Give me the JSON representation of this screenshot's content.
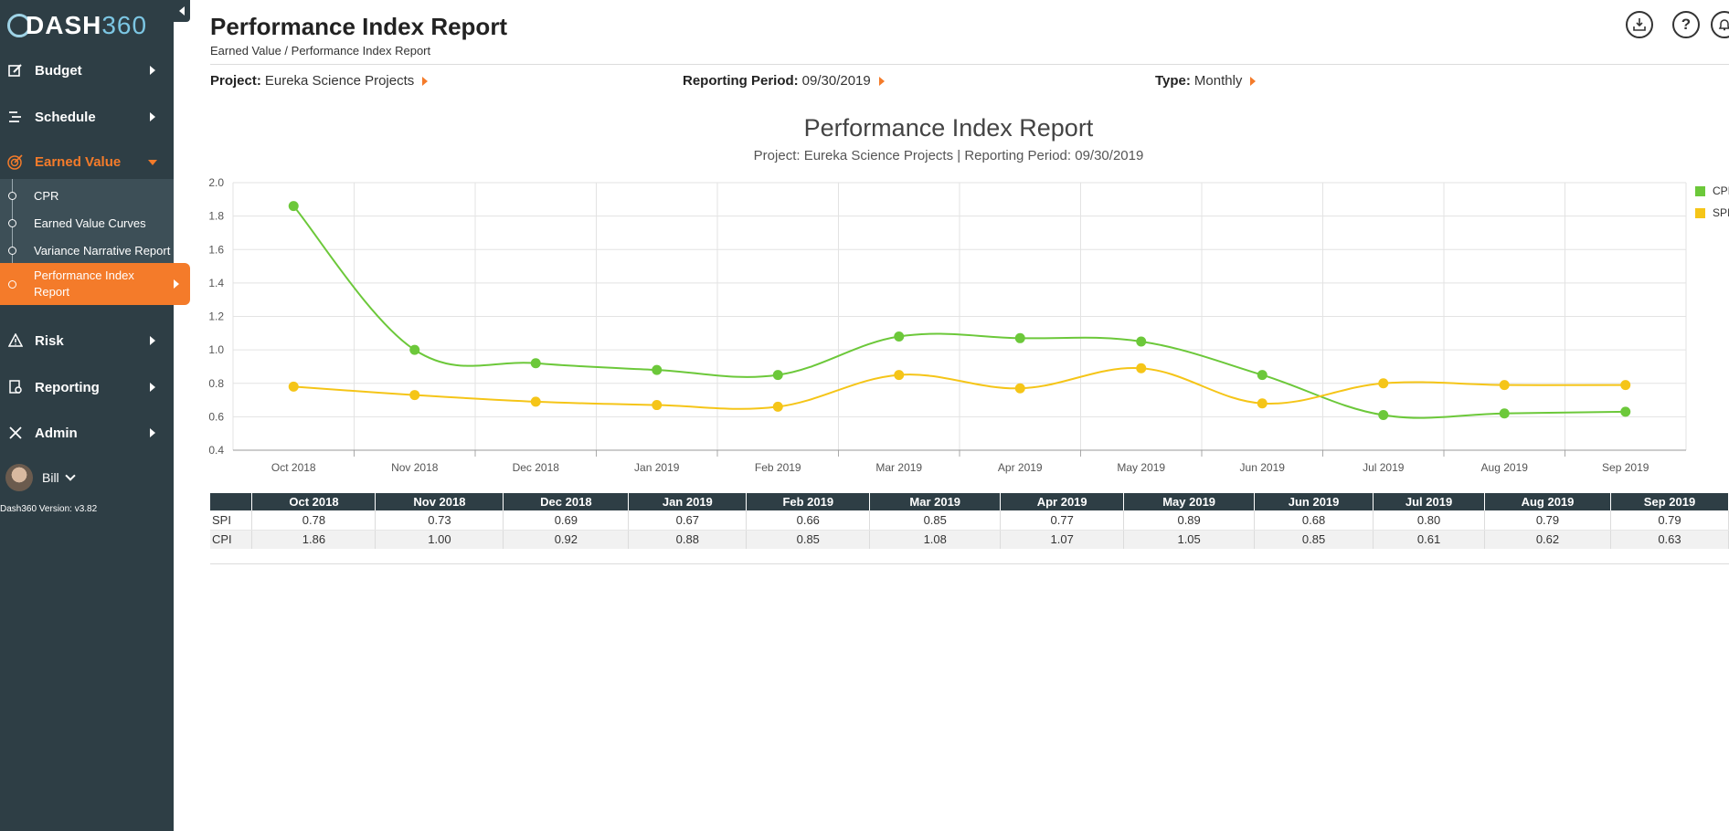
{
  "app": {
    "logo_text": "DASH",
    "logo_num": "360",
    "version": "Dash360 Version: v3.82",
    "user_name": "Bill"
  },
  "sidebar": {
    "items": [
      {
        "label": "Budget",
        "icon": "edit-icon"
      },
      {
        "label": "Schedule",
        "icon": "list-icon"
      },
      {
        "label": "Earned Value",
        "icon": "target-icon"
      },
      {
        "label": "Risk",
        "icon": "warning-icon"
      },
      {
        "label": "Reporting",
        "icon": "report-icon"
      },
      {
        "label": "Admin",
        "icon": "tools-icon"
      }
    ],
    "sub_items": [
      {
        "label": "CPR"
      },
      {
        "label": "Earned Value Curves"
      },
      {
        "label": "Variance Narrative Report"
      },
      {
        "label": "Performance Index Report"
      }
    ]
  },
  "header": {
    "title": "Performance Index Report",
    "breadcrumb": "Earned Value  /  Performance Index Report",
    "icons": [
      "download-icon",
      "help-icon",
      "bell-icon"
    ],
    "help_glyph": "?"
  },
  "filters": {
    "project_label": "Project:",
    "project_value": "Eureka Science Projects",
    "period_label": "Reporting Period:",
    "period_value": "09/30/2019",
    "type_label": "Type:",
    "type_value": "Monthly"
  },
  "colors": {
    "sidebar_bg": "#2e3e45",
    "accent": "#f47b2a",
    "cpi": "#6cc83a",
    "spi": "#f5c518"
  },
  "chart_data": {
    "type": "line",
    "title": "Performance Index Report",
    "subtitle": "Project: Eureka Science Projects | Reporting Period: 09/30/2019",
    "categories": [
      "Oct 2018",
      "Nov 2018",
      "Dec 2018",
      "Jan 2019",
      "Feb 2019",
      "Mar 2019",
      "Apr 2019",
      "May 2019",
      "Jun 2019",
      "Jul 2019",
      "Aug 2019",
      "Sep 2019"
    ],
    "series": [
      {
        "name": "CPI",
        "values": [
          1.86,
          1.0,
          0.92,
          0.88,
          0.85,
          1.08,
          1.07,
          1.05,
          0.85,
          0.61,
          0.62,
          0.63
        ]
      },
      {
        "name": "SPI",
        "values": [
          0.78,
          0.73,
          0.69,
          0.67,
          0.66,
          0.85,
          0.77,
          0.89,
          0.68,
          0.8,
          0.79,
          0.79
        ]
      }
    ],
    "ylim": [
      0.4,
      2.0
    ],
    "yticks": [
      "0.4",
      "0.6",
      "0.8",
      "1.0",
      "1.2",
      "1.4",
      "1.6",
      "1.8",
      "2.0"
    ],
    "grid": true,
    "legend": "top-right"
  },
  "table": {
    "headers": [
      "Oct 2018",
      "Nov 2018",
      "Dec 2018",
      "Jan 2019",
      "Feb 2019",
      "Mar 2019",
      "Apr 2019",
      "May 2019",
      "Jun 2019",
      "Jul 2019",
      "Aug 2019",
      "Sep 2019"
    ],
    "rows": [
      {
        "label": "SPI",
        "values": [
          "0.78",
          "0.73",
          "0.69",
          "0.67",
          "0.66",
          "0.85",
          "0.77",
          "0.89",
          "0.68",
          "0.80",
          "0.79",
          "0.79"
        ]
      },
      {
        "label": "CPI",
        "values": [
          "1.86",
          "1.00",
          "0.92",
          "0.88",
          "0.85",
          "1.08",
          "1.07",
          "1.05",
          "0.85",
          "0.61",
          "0.62",
          "0.63"
        ]
      }
    ]
  }
}
